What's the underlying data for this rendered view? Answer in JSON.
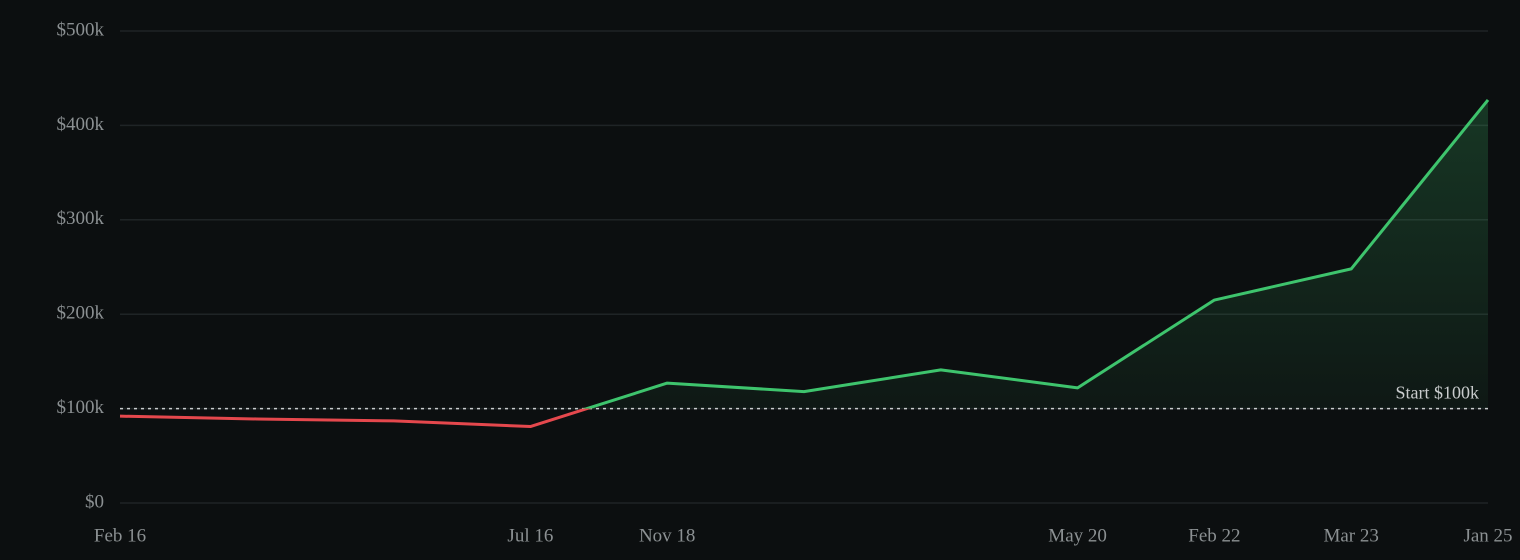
{
  "chart_data": {
    "type": "line",
    "categories": [
      "Feb 16",
      null,
      null,
      "Jul 16",
      "Nov 18",
      null,
      null,
      "May 20",
      "Feb 22",
      "Mar 23",
      "Jan 25"
    ],
    "series": [
      {
        "color": "#3ec46d",
        "below_color": "#e5484d",
        "values": [
          92000,
          89000,
          87000,
          81000,
          127000,
          118000,
          141000,
          122000,
          215000,
          248000,
          427000
        ]
      }
    ],
    "ylim": [
      0,
      500000
    ],
    "yticks": [
      {
        "value": 0,
        "label": "$0"
      },
      {
        "value": 100000,
        "label": "$100k"
      },
      {
        "value": 200000,
        "label": "$200k"
      },
      {
        "value": 300000,
        "label": "$300k"
      },
      {
        "value": 400000,
        "label": "$400k"
      },
      {
        "value": 500000,
        "label": "$500k"
      }
    ],
    "grid": true,
    "reference_line": {
      "value": 100000,
      "label": "Start $100k"
    }
  }
}
